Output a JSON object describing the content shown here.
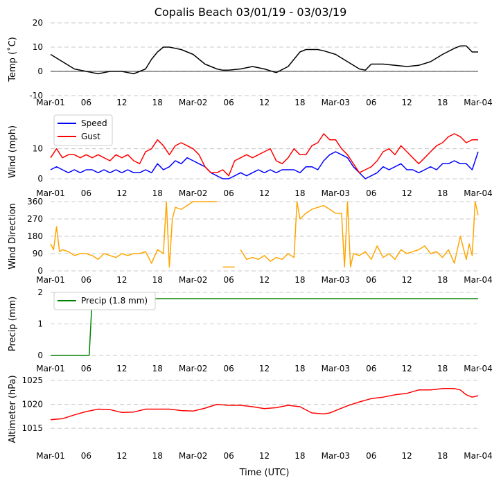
{
  "chart_data": [
    {
      "panel": "temperature",
      "type": "line",
      "title": "Copalis Beach 03/01/19 - 03/03/19",
      "ylabel": "Temp ($^\\circ$C)",
      "ylabel_display": "Temp (˚C)",
      "ylim": [
        -10,
        20
      ],
      "yticks": [
        "-10",
        "0",
        "10",
        "20"
      ],
      "xlim_hours": [
        0,
        72
      ],
      "grid": "horizontal dashed",
      "zero_line": true,
      "color": "#000000",
      "series": [
        {
          "x": [
            0,
            2,
            4,
            6,
            8,
            10,
            12,
            14,
            16,
            17,
            18,
            19,
            20,
            22,
            24,
            26,
            28,
            29,
            30,
            32,
            34,
            36,
            38,
            40,
            41,
            42,
            43,
            44,
            45,
            46,
            48,
            50,
            52,
            53,
            54,
            55,
            56,
            58,
            60,
            62,
            64,
            66,
            68,
            69,
            70,
            71,
            72
          ],
          "y": [
            7,
            4,
            1,
            0,
            -1,
            0,
            0,
            -1,
            1,
            5,
            8,
            10,
            10,
            9,
            7,
            3,
            1,
            0.5,
            0.5,
            1,
            2,
            1,
            -0.5,
            2,
            5,
            8,
            9,
            9,
            9,
            8.5,
            7,
            4,
            1,
            0.5,
            3,
            3,
            3,
            2.5,
            2,
            2.5,
            4,
            7,
            9.5,
            10.5,
            10.5,
            8,
            8
          ]
        }
      ]
    },
    {
      "panel": "wind",
      "type": "line",
      "ylabel": "Wind (mph)",
      "ylim": [
        0,
        18
      ],
      "yticks": [
        "0",
        "10"
      ],
      "xlim_hours": [
        0,
        72
      ],
      "grid": "horizontal dashed",
      "legend_position": "top-left",
      "series": [
        {
          "name": "Speed",
          "color": "#0000ff",
          "x": [
            0,
            1,
            2,
            3,
            4,
            5,
            6,
            7,
            8,
            9,
            10,
            11,
            12,
            13,
            14,
            15,
            16,
            17,
            18,
            19,
            20,
            21,
            22,
            23,
            24,
            25,
            26,
            27,
            28,
            29,
            30,
            31,
            32,
            33,
            34,
            35,
            36,
            37,
            38,
            39,
            40,
            41,
            42,
            43,
            44,
            45,
            46,
            47,
            48,
            49,
            50,
            51,
            52,
            53,
            54,
            55,
            56,
            57,
            58,
            59,
            60,
            61,
            62,
            63,
            64,
            65,
            66,
            67,
            68,
            69,
            70,
            71,
            72
          ],
          "y": [
            3,
            4,
            3,
            2,
            3,
            2,
            3,
            3,
            2,
            3,
            2,
            3,
            2,
            3,
            2,
            2,
            3,
            2,
            5,
            3,
            4,
            6,
            5,
            7,
            6,
            5,
            4,
            2,
            1,
            0,
            0,
            1,
            2,
            1,
            2,
            3,
            2,
            3,
            2,
            3,
            3,
            3,
            2,
            4,
            4,
            3,
            6,
            8,
            9,
            8,
            7,
            4,
            2,
            0,
            1,
            2,
            4,
            3,
            4,
            5,
            3,
            3,
            2,
            3,
            4,
            3,
            5,
            5,
            6,
            5,
            5,
            3,
            9
          ]
        },
        {
          "name": "Gust",
          "color": "#ff0000",
          "x": [
            0,
            1,
            2,
            3,
            4,
            5,
            6,
            7,
            8,
            9,
            10,
            11,
            12,
            13,
            14,
            15,
            16,
            17,
            18,
            19,
            20,
            21,
            22,
            23,
            24,
            25,
            26,
            27,
            28,
            29,
            30,
            31,
            32,
            33,
            34,
            35,
            36,
            37,
            38,
            39,
            40,
            41,
            42,
            43,
            44,
            45,
            46,
            47,
            48,
            49,
            50,
            51,
            52,
            53,
            54,
            55,
            56,
            57,
            58,
            59,
            60,
            61,
            62,
            63,
            64,
            65,
            66,
            67,
            68,
            69,
            70,
            71,
            72
          ],
          "y": [
            7,
            10,
            7,
            8,
            8,
            7,
            8,
            7,
            8,
            7,
            6,
            8,
            7,
            8,
            6,
            5,
            9,
            10,
            13,
            11,
            8,
            11,
            12,
            11,
            10,
            8,
            4,
            2,
            2,
            3,
            1,
            6,
            7,
            8,
            7,
            8,
            9,
            10,
            6,
            5,
            7,
            10,
            8,
            8,
            11,
            12,
            15,
            13,
            13,
            10,
            8,
            5,
            2,
            3,
            4,
            6,
            9,
            10,
            8,
            11,
            9,
            7,
            5,
            7,
            9,
            11,
            12,
            14,
            15,
            14,
            12,
            13,
            13
          ]
        }
      ]
    },
    {
      "panel": "wind-direction",
      "type": "line",
      "ylabel": "Wind Direction",
      "ylim": [
        0,
        360
      ],
      "yticks": [
        "0",
        "90",
        "180",
        "270",
        "360"
      ],
      "xlim_hours": [
        0,
        72
      ],
      "grid": "horizontal dashed",
      "color": "#ffa500",
      "series": [
        {
          "x": [
            0,
            0.5,
            1,
            1.5,
            2,
            3,
            4,
            5,
            6,
            7,
            8,
            9,
            10,
            11,
            12,
            13,
            14,
            15,
            16,
            17,
            18,
            19,
            19.5,
            20,
            20.5,
            21,
            22,
            23,
            24,
            25,
            26,
            27,
            28,
            null,
            29,
            30,
            31,
            null,
            32,
            33,
            34,
            35,
            36,
            37,
            38,
            39,
            40,
            41,
            41.5,
            42,
            43,
            44,
            45,
            46,
            47,
            48,
            49,
            49.5,
            50,
            50.5,
            51,
            52,
            53,
            54,
            55,
            56,
            57,
            58,
            59,
            60,
            61,
            62,
            63,
            64,
            65,
            66,
            67,
            68,
            69,
            70,
            70.5,
            71,
            71.5,
            72
          ],
          "y": [
            140,
            110,
            230,
            100,
            110,
            100,
            80,
            90,
            90,
            80,
            60,
            90,
            80,
            70,
            90,
            80,
            90,
            90,
            100,
            40,
            110,
            90,
            360,
            20,
            270,
            330,
            320,
            340,
            360,
            360,
            360,
            360,
            360,
            null,
            20,
            20,
            20,
            null,
            110,
            60,
            70,
            60,
            80,
            50,
            70,
            60,
            90,
            70,
            360,
            270,
            300,
            320,
            330,
            340,
            320,
            300,
            300,
            20,
            360,
            20,
            90,
            80,
            100,
            60,
            130,
            70,
            90,
            60,
            110,
            90,
            100,
            110,
            130,
            90,
            100,
            70,
            110,
            40,
            180,
            60,
            140,
            80,
            360,
            290
          ]
        }
      ]
    },
    {
      "panel": "precip",
      "type": "line",
      "ylabel": "Precip (mm)",
      "ylim": [
        0,
        2
      ],
      "yticks": [
        "0",
        "1",
        "2"
      ],
      "xlim_hours": [
        0,
        72
      ],
      "grid": "horizontal dashed",
      "legend_position": "top-left",
      "series": [
        {
          "name": "Precip (1.8 mm)",
          "color": "#008000",
          "x": [
            0,
            6.5,
            7,
            72
          ],
          "y": [
            0,
            0,
            1.8,
            1.8
          ]
        }
      ]
    },
    {
      "panel": "altimeter",
      "type": "line",
      "ylabel": "Altimeter (hPa)",
      "ylim": [
        1013,
        1025
      ],
      "yticks": [
        "1015",
        "1020",
        "1025"
      ],
      "xlim_hours": [
        0,
        72
      ],
      "grid": "horizontal dashed",
      "color": "#ff0000",
      "series": [
        {
          "x": [
            0,
            2,
            4,
            6,
            8,
            10,
            12,
            14,
            16,
            18,
            20,
            22,
            24,
            26,
            28,
            30,
            32,
            34,
            36,
            38,
            40,
            42,
            44,
            46,
            47,
            48,
            50,
            52,
            54,
            56,
            58,
            60,
            62,
            64,
            66,
            68,
            69,
            70,
            71,
            72
          ],
          "y": [
            1016.8,
            1017,
            1017.8,
            1018.5,
            1019,
            1018.9,
            1018.3,
            1018.4,
            1019,
            1019,
            1019,
            1018.7,
            1018.6,
            1019.2,
            1020,
            1019.8,
            1019.8,
            1019.5,
            1019.1,
            1019.3,
            1019.8,
            1019.5,
            1018.2,
            1018,
            1018.2,
            1018.7,
            1019.7,
            1020.5,
            1021.2,
            1021.5,
            1022,
            1022.3,
            1023,
            1023,
            1023.3,
            1023.3,
            1023,
            1022,
            1021.5,
            1021.8
          ]
        }
      ]
    }
  ],
  "title": "Copalis Beach 03/01/19 - 03/03/19",
  "xlabel": "Time (UTC)",
  "xticks": [
    {
      "hour": 0,
      "label": "Mar-01"
    },
    {
      "hour": 6,
      "label": "06"
    },
    {
      "hour": 12,
      "label": "12"
    },
    {
      "hour": 18,
      "label": "18"
    },
    {
      "hour": 24,
      "label": "Mar-02"
    },
    {
      "hour": 30,
      "label": "06"
    },
    {
      "hour": 36,
      "label": "12"
    },
    {
      "hour": 42,
      "label": "18"
    },
    {
      "hour": 48,
      "label": "Mar-03"
    },
    {
      "hour": 54,
      "label": "06"
    },
    {
      "hour": 60,
      "label": "12"
    },
    {
      "hour": 66,
      "label": "18"
    },
    {
      "hour": 72,
      "label": "Mar-04"
    }
  ]
}
